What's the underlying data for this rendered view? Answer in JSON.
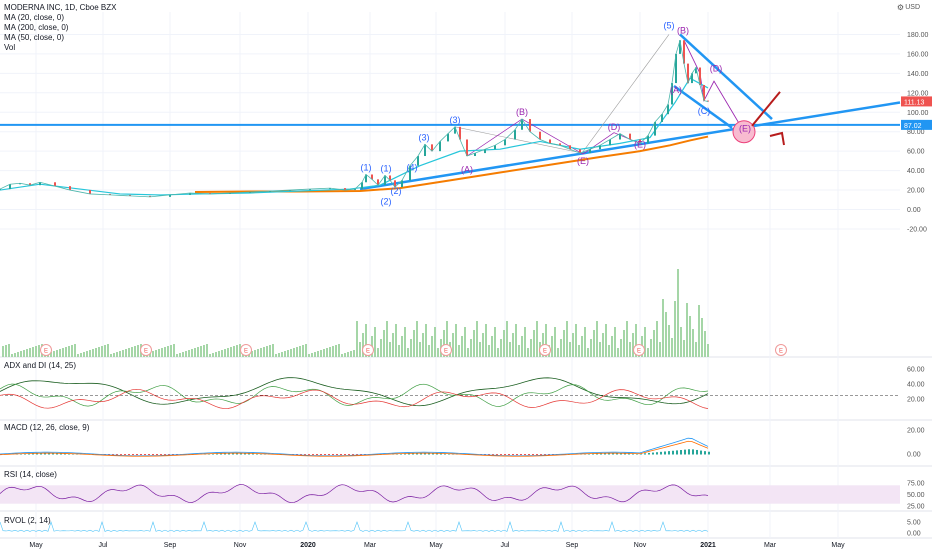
{
  "legend": {
    "title": "MODERNA INC, 1D, Cboe BZX",
    "ma20": "MA (20, close, 0)",
    "ma200": "MA (200, close, 0)",
    "ma50": "MA (50, close, 0)",
    "vol": "Vol"
  },
  "axis_unit": "USD",
  "gear_icon": "gear-icon",
  "panels": {
    "adx": "ADX and DI (14, 25)",
    "macd": "MACD (12, 26, close, 9)",
    "rsi": "RSI (14, close)",
    "rvol": "RVOL (2, 14)"
  },
  "chart_data": {
    "type": "line",
    "x_ticks": [
      "May",
      "Jul",
      "Sep",
      "Nov",
      "2020",
      "Mar",
      "May",
      "Jul",
      "Sep",
      "Nov",
      "2021",
      "Mar",
      "May"
    ],
    "price_axis_ticks": [
      "180.00",
      "160.00",
      "140.00",
      "120.00",
      "100.00",
      "80.00",
      "60.00",
      "40.00",
      "20.00",
      "0.00",
      "-20.00"
    ],
    "price_labels": {
      "last": "111.13",
      "level": "87.02"
    },
    "colors": {
      "last_bg": "#ef5350",
      "level_bg": "#2196f3",
      "ma200": "#f57c00",
      "ma": "#26c6da",
      "trend": "#2196f3",
      "arrow": "#b71c1c",
      "wave": "#9c27b0"
    },
    "price_series": [
      {
        "x": 0,
        "y": 21
      },
      {
        "x": 10,
        "y": 26
      },
      {
        "x": 20,
        "y": 27
      },
      {
        "x": 30,
        "y": 25
      },
      {
        "x": 40,
        "y": 28
      },
      {
        "x": 55,
        "y": 24
      },
      {
        "x": 70,
        "y": 20
      },
      {
        "x": 90,
        "y": 16
      },
      {
        "x": 110,
        "y": 15
      },
      {
        "x": 130,
        "y": 14
      },
      {
        "x": 150,
        "y": 13
      },
      {
        "x": 170,
        "y": 15
      },
      {
        "x": 190,
        "y": 17
      },
      {
        "x": 210,
        "y": 16
      },
      {
        "x": 230,
        "y": 17
      },
      {
        "x": 250,
        "y": 18
      },
      {
        "x": 270,
        "y": 19
      },
      {
        "x": 290,
        "y": 20
      },
      {
        "x": 310,
        "y": 21
      },
      {
        "x": 330,
        "y": 22
      },
      {
        "x": 345,
        "y": 20
      },
      {
        "x": 355,
        "y": 21
      },
      {
        "x": 362,
        "y": 28
      },
      {
        "x": 366,
        "y": 36
      },
      {
        "x": 372,
        "y": 31
      },
      {
        "x": 378,
        "y": 25
      },
      {
        "x": 385,
        "y": 35
      },
      {
        "x": 390,
        "y": 30
      },
      {
        "x": 395,
        "y": 23
      },
      {
        "x": 402,
        "y": 30
      },
      {
        "x": 410,
        "y": 45
      },
      {
        "x": 418,
        "y": 55
      },
      {
        "x": 425,
        "y": 67
      },
      {
        "x": 432,
        "y": 60
      },
      {
        "x": 440,
        "y": 70
      },
      {
        "x": 448,
        "y": 78
      },
      {
        "x": 455,
        "y": 85
      },
      {
        "x": 460,
        "y": 72
      },
      {
        "x": 467,
        "y": 55
      },
      {
        "x": 475,
        "y": 58
      },
      {
        "x": 485,
        "y": 62
      },
      {
        "x": 495,
        "y": 66
      },
      {
        "x": 505,
        "y": 72
      },
      {
        "x": 515,
        "y": 82
      },
      {
        "x": 522,
        "y": 93
      },
      {
        "x": 530,
        "y": 80
      },
      {
        "x": 540,
        "y": 72
      },
      {
        "x": 550,
        "y": 68
      },
      {
        "x": 560,
        "y": 66
      },
      {
        "x": 570,
        "y": 62
      },
      {
        "x": 580,
        "y": 58
      },
      {
        "x": 590,
        "y": 62
      },
      {
        "x": 600,
        "y": 66
      },
      {
        "x": 610,
        "y": 72
      },
      {
        "x": 620,
        "y": 78
      },
      {
        "x": 630,
        "y": 72
      },
      {
        "x": 640,
        "y": 68
      },
      {
        "x": 648,
        "y": 76
      },
      {
        "x": 655,
        "y": 90
      },
      {
        "x": 662,
        "y": 98
      },
      {
        "x": 668,
        "y": 108
      },
      {
        "x": 672,
        "y": 130
      },
      {
        "x": 676,
        "y": 160
      },
      {
        "x": 680,
        "y": 174
      },
      {
        "x": 684,
        "y": 150
      },
      {
        "x": 688,
        "y": 130
      },
      {
        "x": 692,
        "y": 140
      },
      {
        "x": 696,
        "y": 146
      },
      {
        "x": 700,
        "y": 128
      },
      {
        "x": 704,
        "y": 112
      },
      {
        "x": 708,
        "y": 111
      }
    ],
    "ma200_series": [
      {
        "x": 195,
        "y": 18
      },
      {
        "x": 250,
        "y": 18.5
      },
      {
        "x": 300,
        "y": 18.5
      },
      {
        "x": 360,
        "y": 19
      },
      {
        "x": 400,
        "y": 22
      },
      {
        "x": 450,
        "y": 30
      },
      {
        "x": 500,
        "y": 38
      },
      {
        "x": 550,
        "y": 46
      },
      {
        "x": 600,
        "y": 54
      },
      {
        "x": 640,
        "y": 60
      },
      {
        "x": 670,
        "y": 66
      },
      {
        "x": 690,
        "y": 71
      },
      {
        "x": 708,
        "y": 75
      }
    ],
    "ma_series": [
      {
        "x": 0,
        "y": 20
      },
      {
        "x": 40,
        "y": 26
      },
      {
        "x": 80,
        "y": 21
      },
      {
        "x": 120,
        "y": 16
      },
      {
        "x": 160,
        "y": 15
      },
      {
        "x": 200,
        "y": 16
      },
      {
        "x": 250,
        "y": 17
      },
      {
        "x": 300,
        "y": 19
      },
      {
        "x": 350,
        "y": 21
      },
      {
        "x": 380,
        "y": 25
      },
      {
        "x": 420,
        "y": 45
      },
      {
        "x": 460,
        "y": 60
      },
      {
        "x": 500,
        "y": 62
      },
      {
        "x": 540,
        "y": 70
      },
      {
        "x": 580,
        "y": 62
      },
      {
        "x": 620,
        "y": 68
      },
      {
        "x": 650,
        "y": 74
      },
      {
        "x": 675,
        "y": 110
      },
      {
        "x": 690,
        "y": 135
      },
      {
        "x": 708,
        "y": 125
      }
    ],
    "wave_labels": [
      {
        "text": "(1)",
        "x": 366,
        "y": 40,
        "color": "#2962ff"
      },
      {
        "text": "(1)",
        "x": 386,
        "y": 39,
        "color": "#2962ff"
      },
      {
        "text": "(2)",
        "x": 396,
        "y": 16,
        "color": "#2962ff"
      },
      {
        "text": "(2)",
        "x": 386,
        "y": 5,
        "color": "#2962ff"
      },
      {
        "text": "(3)",
        "x": 424,
        "y": 71,
        "color": "#2962ff"
      },
      {
        "text": "(4)",
        "x": 412,
        "y": 40,
        "color": "#2962ff"
      },
      {
        "text": "(3)",
        "x": 455,
        "y": 89,
        "color": "#2962ff"
      },
      {
        "text": "(A)",
        "x": 467,
        "y": 38,
        "color": "#9c27b0"
      },
      {
        "text": "(B)",
        "x": 522,
        "y": 97,
        "color": "#9c27b0"
      },
      {
        "text": "(D)",
        "x": 614,
        "y": 82,
        "color": "#9c27b0"
      },
      {
        "text": "(E)",
        "x": 640,
        "y": 64,
        "color": "#9c27b0"
      },
      {
        "text": "(E)",
        "x": 583,
        "y": 47,
        "color": "#9c27b0"
      },
      {
        "text": "(5)",
        "x": 669,
        "y": 186,
        "color": "#2962ff"
      },
      {
        "text": "(B)",
        "x": 683,
        "y": 181,
        "color": "#9c27b0"
      },
      {
        "text": "(D)",
        "x": 716,
        "y": 142,
        "color": "#9c27b0"
      },
      {
        "text": "(A)",
        "x": 676,
        "y": 120,
        "color": "#9c27b0"
      },
      {
        "text": "(C)",
        "x": 704,
        "y": 98,
        "color": "#2962ff"
      },
      {
        "text": "(E)",
        "x": 745,
        "y": 80,
        "color": "#9c27b0"
      }
    ],
    "volume_labels_e": [
      46,
      146,
      246,
      368,
      446,
      545,
      639,
      781
    ],
    "adx_axis_ticks": [
      "60.00",
      "40.00",
      "20.00"
    ],
    "macd_axis_ticks": [
      "20.00",
      "0.00"
    ],
    "rsi_axis_ticks": [
      "75.00",
      "50.00",
      "25.00"
    ],
    "rvol_axis_ticks": [
      "5.00",
      "0.00"
    ]
  }
}
